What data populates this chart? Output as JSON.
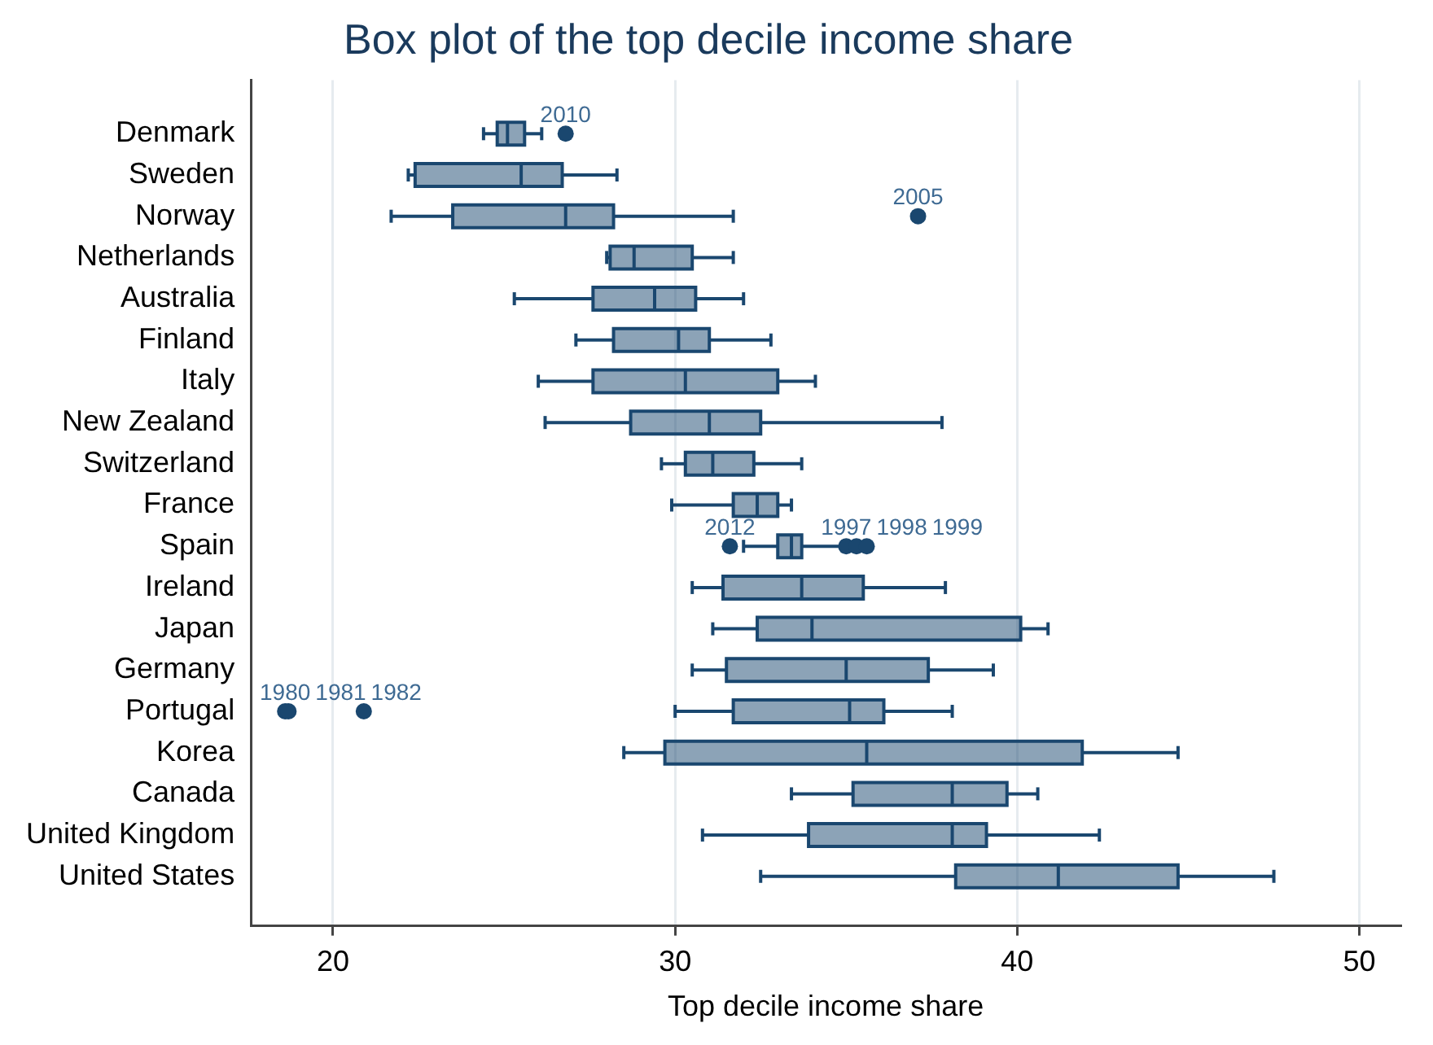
{
  "chart_data": {
    "type": "box",
    "orientation": "horizontal",
    "title": "Box plot of the top decile income share",
    "xlabel": "Top decile income share",
    "categories": [
      "Denmark",
      "Sweden",
      "Norway",
      "Netherlands",
      "Australia",
      "Finland",
      "Italy",
      "New Zealand",
      "Switzerland",
      "France",
      "Spain",
      "Ireland",
      "Japan",
      "Germany",
      "Portugal",
      "Korea",
      "Canada",
      "United Kingdom",
      "United States"
    ],
    "xlim": [
      17.6,
      51.2
    ],
    "xticks": [
      20,
      30,
      40,
      50
    ],
    "grid": "x",
    "marker": "circle",
    "series": [
      {
        "color": "#1a476f",
        "boxes": [
          {
            "low": 24.4,
            "q1": 24.8,
            "median": 25.1,
            "q3": 25.6,
            "high": 26.1
          },
          {
            "low": 22.2,
            "q1": 22.4,
            "median": 25.5,
            "q3": 26.7,
            "high": 28.3
          },
          {
            "low": 21.7,
            "q1": 23.5,
            "median": 26.8,
            "q3": 28.2,
            "high": 31.7
          },
          {
            "low": 28.0,
            "q1": 28.1,
            "median": 28.8,
            "q3": 30.5,
            "high": 31.7
          },
          {
            "low": 25.3,
            "q1": 27.6,
            "median": 29.4,
            "q3": 30.6,
            "high": 32.0
          },
          {
            "low": 27.1,
            "q1": 28.2,
            "median": 30.1,
            "q3": 31.0,
            "high": 32.8
          },
          {
            "low": 26.0,
            "q1": 27.6,
            "median": 30.3,
            "q3": 33.0,
            "high": 34.1
          },
          {
            "low": 26.2,
            "q1": 28.7,
            "median": 31.0,
            "q3": 32.5,
            "high": 37.8
          },
          {
            "low": 29.6,
            "q1": 30.3,
            "median": 31.1,
            "q3": 32.3,
            "high": 33.7
          },
          {
            "low": 29.9,
            "q1": 31.7,
            "median": 32.4,
            "q3": 33.0,
            "high": 33.4
          },
          {
            "low": 32.0,
            "q1": 33.0,
            "median": 33.4,
            "q3": 33.7,
            "high": 34.9
          },
          {
            "low": 30.5,
            "q1": 31.4,
            "median": 33.7,
            "q3": 35.5,
            "high": 37.9
          },
          {
            "low": 31.1,
            "q1": 32.4,
            "median": 34.0,
            "q3": 40.1,
            "high": 40.9
          },
          {
            "low": 30.5,
            "q1": 31.5,
            "median": 35.0,
            "q3": 37.4,
            "high": 39.3
          },
          {
            "low": 30.0,
            "q1": 31.7,
            "median": 35.1,
            "q3": 36.1,
            "high": 38.1
          },
          {
            "low": 28.5,
            "q1": 29.7,
            "median": 35.6,
            "q3": 41.9,
            "high": 44.7
          },
          {
            "low": 33.4,
            "q1": 35.2,
            "median": 38.1,
            "q3": 39.7,
            "high": 40.6
          },
          {
            "low": 30.8,
            "q1": 33.9,
            "median": 38.1,
            "q3": 39.1,
            "high": 42.4
          },
          {
            "low": 32.5,
            "q1": 38.2,
            "median": 41.2,
            "q3": 44.7,
            "high": 47.5
          }
        ]
      },
      {
        "type": "scatter",
        "color": "#1a476f",
        "x": [
          "Denmark",
          "Norway",
          "Spain",
          "Spain",
          "Spain",
          "Spain",
          "Portugal",
          "Portugal",
          "Portugal"
        ],
        "values": [
          26.8,
          37.1,
          31.6,
          35.0,
          35.3,
          35.6,
          18.6,
          18.7,
          20.9
        ]
      }
    ],
    "legend": false,
    "annotations": [
      {
        "text": "2010",
        "x": 26.8,
        "y": "Denmark"
      },
      {
        "text": "2005",
        "x": 37.1,
        "y": "Norway"
      },
      {
        "text": "2012",
        "x": 31.6,
        "y": "Spain"
      },
      {
        "text": "1997",
        "x": 35.0,
        "y": "Spain"
      },
      {
        "text": "1998",
        "x": 35.3,
        "y": "Spain"
      },
      {
        "text": "1999",
        "x": 35.6,
        "y": "Spain"
      },
      {
        "text": "1980",
        "x": 18.6,
        "y": "Portugal"
      },
      {
        "text": "1981",
        "x": 18.7,
        "y": "Portugal"
      },
      {
        "text": "1982",
        "x": 20.9,
        "y": "Portugal"
      }
    ]
  }
}
